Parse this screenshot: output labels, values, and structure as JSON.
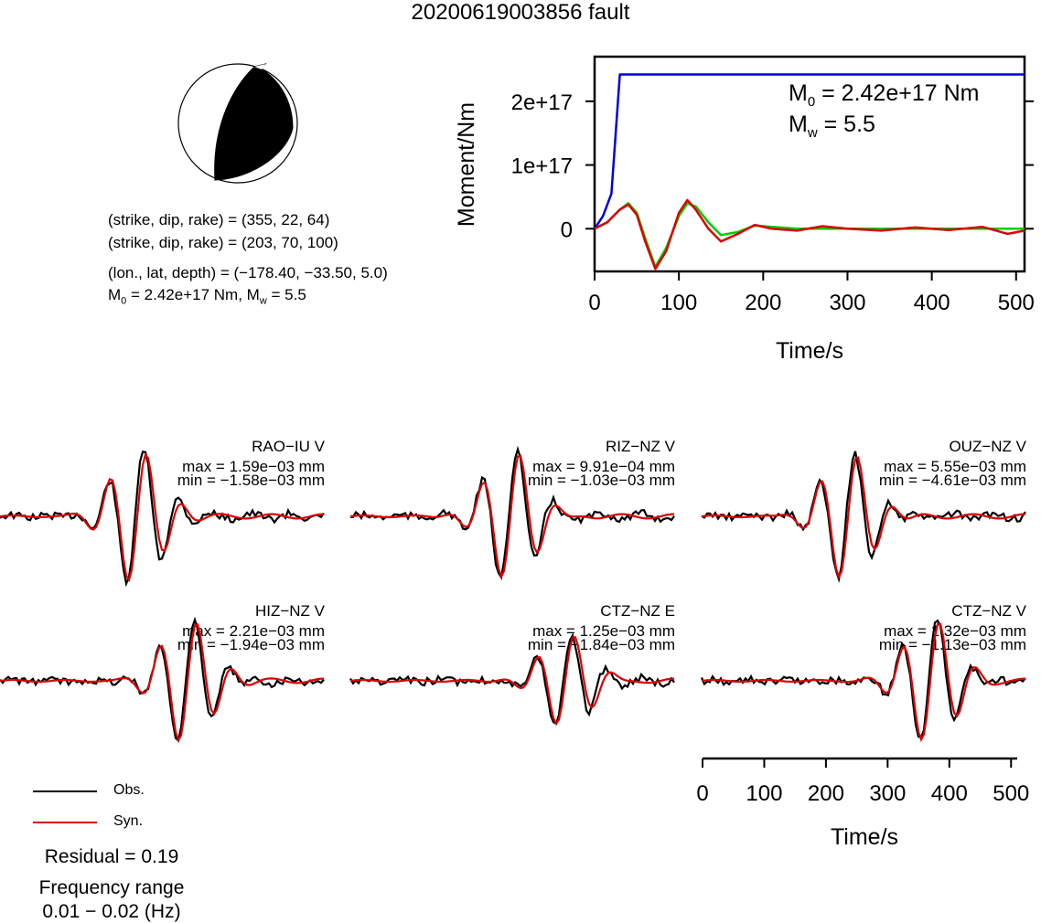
{
  "title": "20200619003856 fault",
  "mechanism": {
    "line1": "(strike, dip, rake) = (355, 22, 64)",
    "line2": "(strike, dip, rake) = (203, 70, 100)",
    "line3": "(lon., lat, depth) = (−178.40, −33.50, 5.0)",
    "line4_prefix": "M",
    "line4_sub": "0",
    "line4_rest": " = 2.42e+17 Nm, M",
    "line4_sub2": "w",
    "line4_end": " = 5.5"
  },
  "moment_chart": {
    "ylabel": "Moment/Nm",
    "xlabel": "Time/s",
    "yticks": [
      "2e+17",
      "1e+17",
      "0"
    ],
    "xticks": [
      "0",
      "100",
      "200",
      "300",
      "400",
      "500"
    ],
    "m0_label": "M",
    "m0_sub": "0",
    "m0_rest": " = 2.42e+17 Nm",
    "mw_label": "M",
    "mw_sub": "w",
    "mw_rest": " = 5.5"
  },
  "stations": [
    {
      "name": "RAO−IU V",
      "max": "max = 1.59e−03 mm",
      "min": "min = −1.58e−03 mm"
    },
    {
      "name": "RIZ−NZ V",
      "max": "max = 9.91e−04 mm",
      "min": "min = −1.03e−03 mm"
    },
    {
      "name": "OUZ−NZ V",
      "max": "max = 5.55e−03 mm",
      "min": "min = −4.61e−03 mm"
    },
    {
      "name": "HIZ−NZ V",
      "max": "max = 2.21e−03 mm",
      "min": "min = −1.94e−03 mm"
    },
    {
      "name": "CTZ−NZ E",
      "max": "max = 1.25e−03 mm",
      "min": "min = −1.84e−03 mm"
    },
    {
      "name": "CTZ−NZ V",
      "max": "max = 1.32e−03 mm",
      "min": "min = −1.13e−03 mm"
    }
  ],
  "waveform_axis": {
    "xlabel": "Time/s",
    "xticks": [
      "0",
      "100",
      "200",
      "300",
      "400",
      "500"
    ]
  },
  "legend": {
    "obs": "Obs.",
    "syn": "Syn."
  },
  "residual": "Residual = 0.19",
  "freq_label": "Frequency range",
  "freq_value": "0.01 − 0.02 (Hz)",
  "colors": {
    "observed": "#000000",
    "synthetic": "#dd0000",
    "moment_cumulative": "#0000dd",
    "moment_rate_green": "#00cc00",
    "moment_rate_red": "#dd0000"
  },
  "chart_data": [
    {
      "type": "line",
      "xlabel": "Time/s",
      "ylabel": "Moment/Nm",
      "xlim": [
        0,
        510
      ],
      "ylim": [
        -6.7e+16,
        2.7e+17
      ],
      "series": [
        {
          "color": "#0000dd",
          "x": [
            0,
            10,
            20,
            30,
            40,
            510
          ],
          "y": [
            0,
            2e+16,
            5.5e+16,
            2.42e+17,
            2.42e+17,
            2.42e+17
          ]
        },
        {
          "color": "#00cc00",
          "x": [
            0,
            15,
            30,
            40,
            50,
            60,
            72,
            85,
            100,
            110,
            120,
            135,
            150,
            170,
            190,
            210,
            240,
            270,
            300,
            340,
            380,
            420,
            460,
            510
          ],
          "y": [
            0,
            1e+16,
            3e+16,
            4e+16,
            2.5e+16,
            -1.5e+16,
            -6e+16,
            -3e+16,
            2e+16,
            4e+16,
            3.5e+16,
            1e+16,
            -1e+16,
            -5000000000000000.0,
            5000000000000000.0,
            3000000000000000.0,
            0,
            0,
            0,
            0,
            0,
            0,
            0,
            0
          ]
        },
        {
          "color": "#dd0000",
          "x": [
            0,
            15,
            30,
            40,
            50,
            60,
            72,
            85,
            100,
            110,
            120,
            135,
            150,
            170,
            190,
            210,
            240,
            270,
            300,
            340,
            380,
            420,
            460,
            490,
            510
          ],
          "y": [
            0,
            1e+16,
            3e+16,
            3.8e+16,
            2.2e+16,
            -2e+16,
            -6.3e+16,
            -3.5e+16,
            2.5e+16,
            4.5e+16,
            3e+16,
            0,
            -2e+16,
            -8000000000000000.0,
            6000000000000000.0,
            0,
            -3000000000000000.0,
            4000000000000000.0,
            0,
            -3000000000000000.0,
            2000000000000000.0,
            -2000000000000000.0,
            3000000000000000.0,
            -8000000000000000.0,
            -3000000000000000.0
          ]
        }
      ]
    }
  ]
}
